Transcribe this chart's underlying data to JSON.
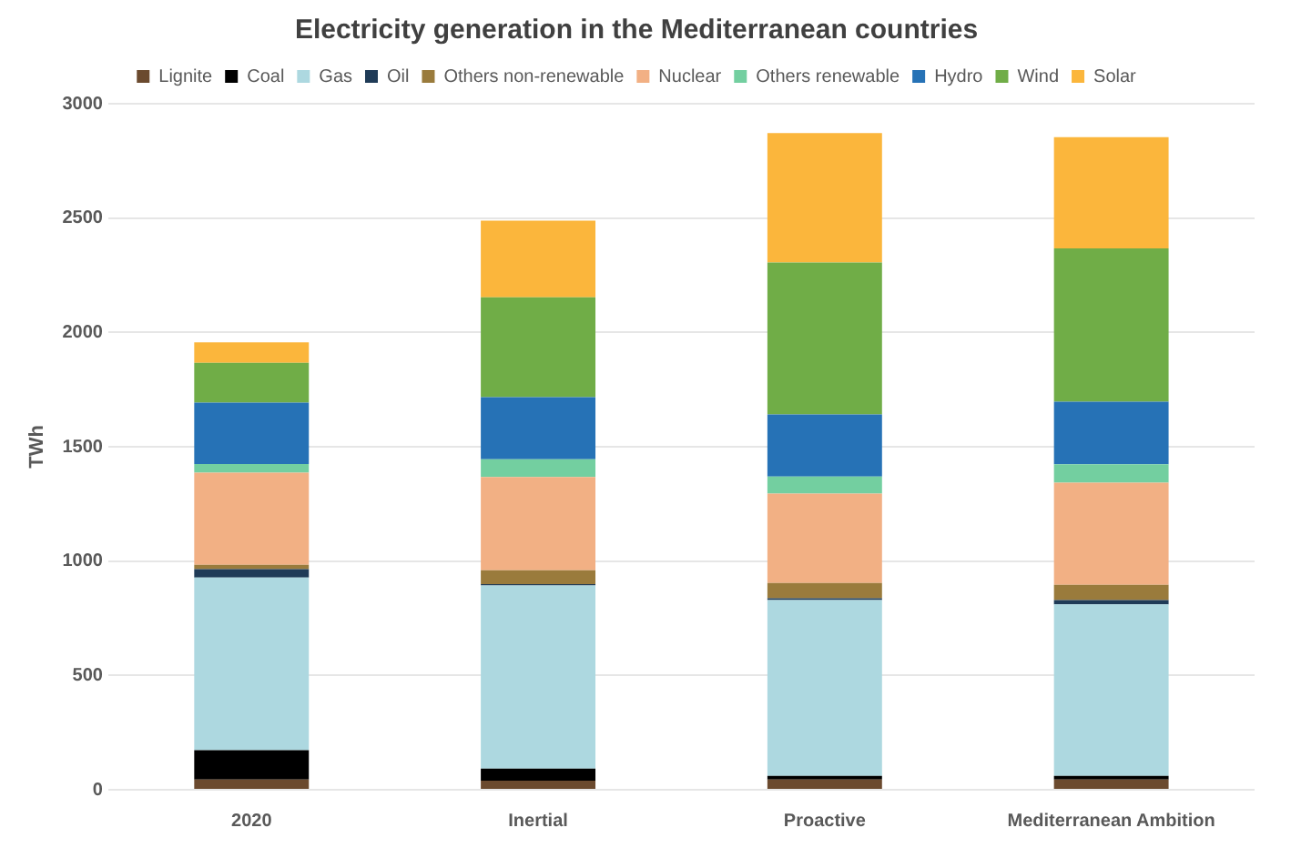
{
  "chart_data": {
    "type": "bar",
    "title": "Electricity generation in the Mediterranean countries",
    "ylabel": "TWh",
    "stacked": true,
    "legend": "top",
    "grid": "y",
    "categories": [
      "2020",
      "Inertial",
      "Proactive",
      "Mediterranean Ambition"
    ],
    "ylim": [
      0,
      3000
    ],
    "yticks": [
      0,
      500,
      1000,
      1500,
      2000,
      2500,
      3000
    ],
    "series": [
      {
        "name": "Lignite",
        "color": "#6b4a2e",
        "values": [
          45,
          40,
          45,
          45
        ]
      },
      {
        "name": "Coal",
        "color": "#000000",
        "values": [
          128,
          53,
          16,
          16
        ]
      },
      {
        "name": "Gas",
        "color": "#add8e0",
        "values": [
          755,
          800,
          769,
          750
        ]
      },
      {
        "name": "Oil",
        "color": "#1f3b57",
        "values": [
          37,
          6,
          8,
          19
        ]
      },
      {
        "name": "Others non-renewable",
        "color": "#9a7b3c",
        "values": [
          19,
          61,
          66,
          66
        ]
      },
      {
        "name": "Nuclear",
        "color": "#f2b084",
        "values": [
          403,
          408,
          391,
          447
        ]
      },
      {
        "name": "Others renewable",
        "color": "#73cfa0",
        "values": [
          37,
          77,
          75,
          80
        ]
      },
      {
        "name": "Hydro",
        "color": "#2672b6",
        "values": [
          269,
          272,
          271,
          274
        ]
      },
      {
        "name": "Wind",
        "color": "#70ad47",
        "values": [
          174,
          437,
          665,
          670
        ]
      },
      {
        "name": "Solar",
        "color": "#fbb63c",
        "values": [
          90,
          335,
          566,
          487
        ]
      }
    ]
  }
}
